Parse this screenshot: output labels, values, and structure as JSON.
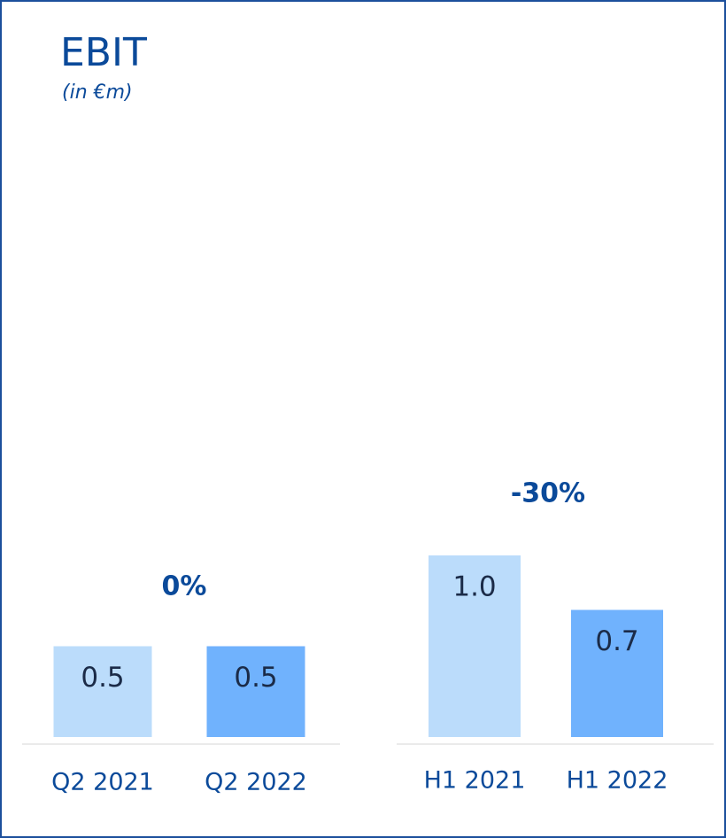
{
  "title": "EBIT",
  "subtitle": "(in €m)",
  "chart_data": [
    {
      "type": "bar",
      "categories": [
        "Q2 2021",
        "Q2 2022"
      ],
      "values": [
        0.5,
        0.5
      ],
      "value_labels": [
        "0.5",
        "0.5"
      ],
      "colors": [
        "#bbdcfb",
        "#70b2fd"
      ],
      "annotation": "0%"
    },
    {
      "type": "bar",
      "categories": [
        "H1 2021",
        "H1 2022"
      ],
      "values": [
        1.0,
        0.7
      ],
      "value_labels": [
        "1.0",
        "0.7"
      ],
      "colors": [
        "#bbdcfb",
        "#70b2fd"
      ],
      "annotation": "-30%"
    }
  ]
}
